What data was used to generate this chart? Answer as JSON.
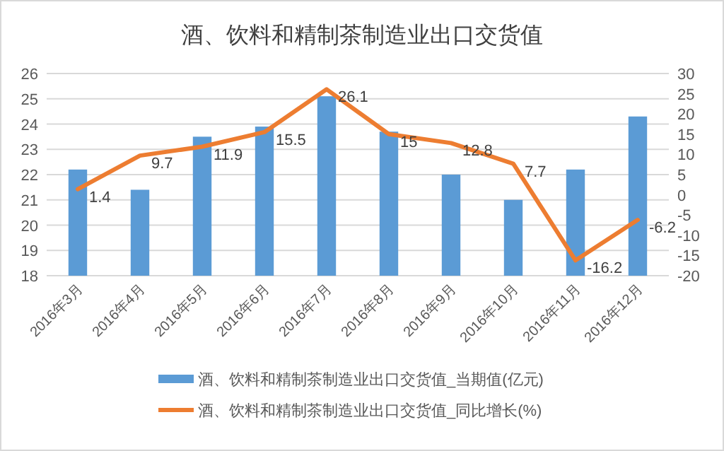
{
  "chart_data": {
    "type": "bar",
    "title": "酒、饮料和精制茶制造业出口交货值",
    "categories": [
      "2016年3月",
      "2016年4月",
      "2016年5月",
      "2016年6月",
      "2016年7月",
      "2016年8月",
      "2016年9月",
      "2016年10月",
      "2016年11月",
      "2016年12月"
    ],
    "series": [
      {
        "name": "酒、饮料和精制茶制造业出口交货值_当期值(亿元)",
        "color": "#5b9bd5",
        "values": [
          22.2,
          21.4,
          23.5,
          23.9,
          25.1,
          23.7,
          22.0,
          21.0,
          22.2,
          24.3
        ]
      },
      {
        "name": "酒、饮料和精制茶制造业出口交货值_同比增长(%)",
        "type": "line",
        "axis": "y2",
        "color": "#ed7d31",
        "values": [
          1.4,
          9.7,
          11.9,
          15.5,
          26.1,
          15,
          12.8,
          7.7,
          -16.2,
          -6.2
        ],
        "value_labels": [
          "1.4",
          "9.7",
          "11.9",
          "15.5",
          "26.1",
          "15",
          "12.8",
          "7.7",
          "-16.2",
          "-6.2"
        ]
      }
    ],
    "ylim": [
      18,
      26
    ],
    "yticks": [
      18,
      19,
      20,
      21,
      22,
      23,
      24,
      25,
      26
    ],
    "y2lim": [
      -20,
      30
    ],
    "y2ticks": [
      -20,
      -15,
      -10,
      -5,
      0,
      5,
      10,
      15,
      20,
      25,
      30
    ],
    "grid": "y",
    "legend": "bottom"
  }
}
